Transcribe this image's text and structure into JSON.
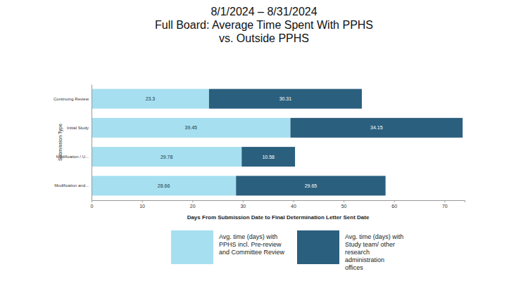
{
  "chart_data": {
    "type": "bar",
    "orientation": "horizontal",
    "stacked": true,
    "data_labels": true,
    "grid": false,
    "legend": "bottom",
    "title": [
      "8/1/2024 – 8/31/2024",
      "Full Board: Average Time Spent With PPHS",
      "vs. Outside PPHS"
    ],
    "x_label": "Days From Submission Date to Final Determination Letter Sent Date",
    "y_label": "Submission Type",
    "categories": [
      "Continuing Review",
      "Initial Study",
      "Modification / U...",
      "Modification and..."
    ],
    "series": [
      {
        "name": "Avg. time (days) with PPHS incl. Pre-review and Committee Review",
        "color": "#a6dff0",
        "values": [
          23.3,
          39.45,
          29.78,
          28.66
        ]
      },
      {
        "name": "Avg. time (days) with Study team/ other research administration offices",
        "color": "#2b5f7e",
        "values": [
          30.31,
          34.15,
          10.58,
          29.65
        ]
      }
    ],
    "xlim": [
      0,
      74
    ],
    "xticks": [
      0,
      10,
      20,
      30,
      40,
      50,
      60,
      70
    ]
  }
}
